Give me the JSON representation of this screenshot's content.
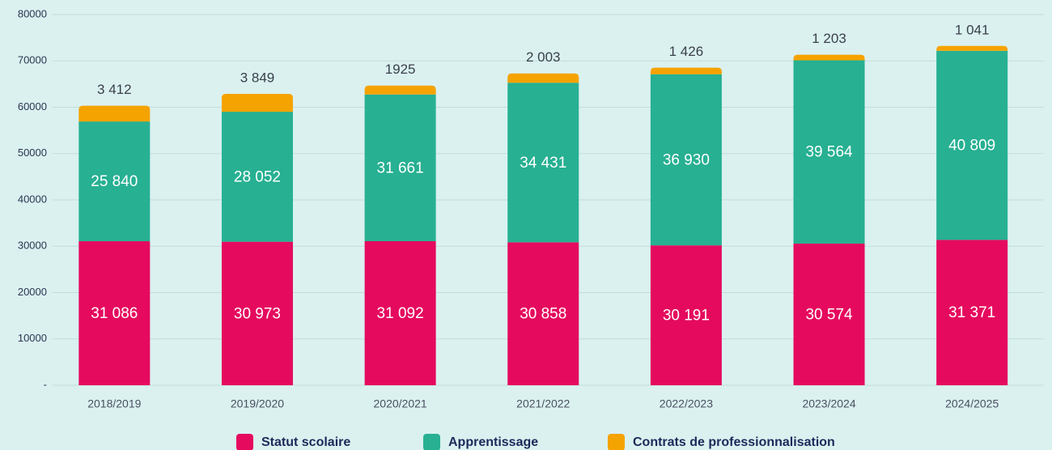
{
  "chart_data": {
    "type": "stacked_bar",
    "categories": [
      "2018/2019",
      "2019/2020",
      "2020/2021",
      "2021/2022",
      "2022/2023",
      "2023/2024",
      "2024/2025"
    ],
    "series": [
      {
        "name": "Statut scolaire",
        "color": "#e50a5e",
        "values": [
          31086,
          30973,
          31092,
          30858,
          30191,
          30574,
          31371
        ],
        "value_labels": [
          "31 086",
          "30 973",
          "31 092",
          "30 858",
          "30 191",
          "30 574",
          "31 371"
        ]
      },
      {
        "name": "Apprentissage",
        "color": "#27b092",
        "values": [
          25840,
          28052,
          31661,
          34431,
          36930,
          39564,
          40809
        ],
        "value_labels": [
          "25 840",
          "28 052",
          "31 661",
          "34 431",
          "36 930",
          "39 564",
          "40 809"
        ]
      },
      {
        "name": "Contrats de professionnalisation",
        "color": "#f5a300",
        "values": [
          3412,
          3849,
          1925,
          2003,
          1426,
          1203,
          1041
        ],
        "value_labels": [
          "3 412",
          "3 849",
          "1925",
          "2 003",
          "1 426",
          "1 203",
          "1 041"
        ]
      }
    ],
    "ylim": [
      0,
      80000
    ],
    "yticks": [
      {
        "value": 0,
        "label": "-"
      },
      10000,
      20000,
      30000,
      40000,
      50000,
      60000,
      70000,
      80000
    ],
    "grid": true,
    "legend": "bottom"
  }
}
